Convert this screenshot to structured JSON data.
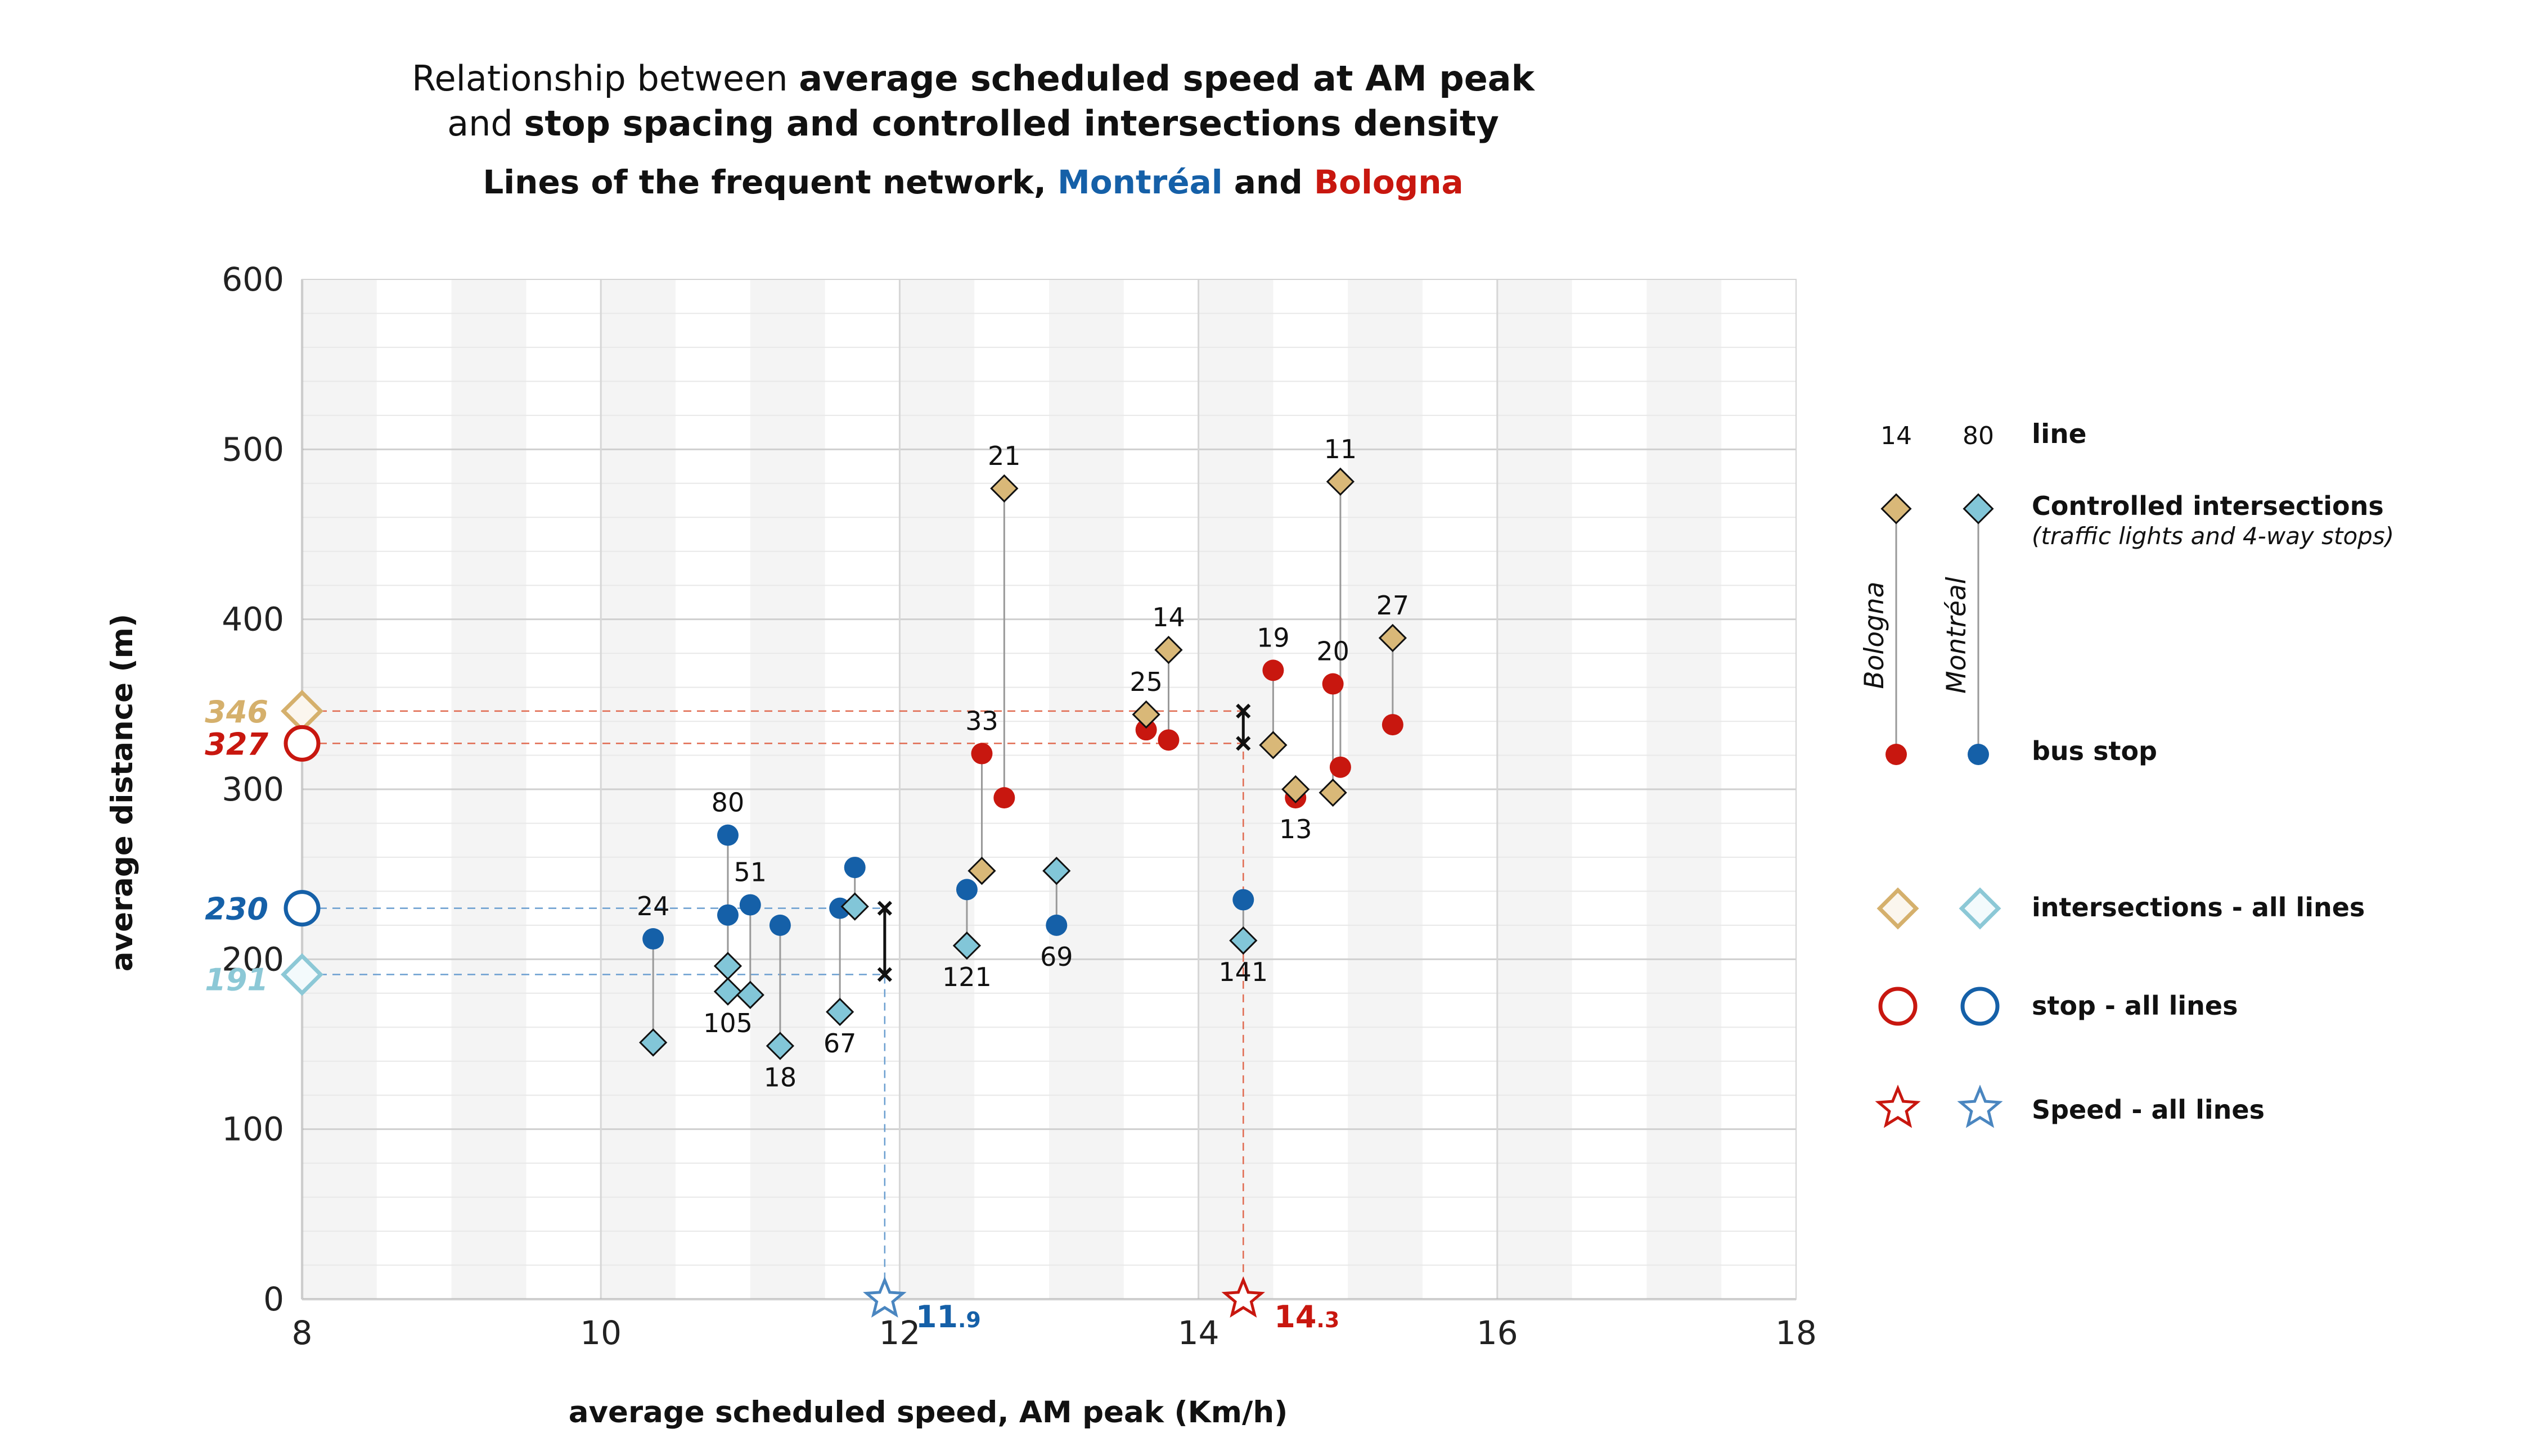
{
  "title": {
    "line1_pre": "Relationship between ",
    "line1_bold": "average scheduled speed at AM peak",
    "line2_pre": "and ",
    "line2_bold": "stop spacing and controlled intersections density",
    "subtitle_pre": "Lines of the frequent network, ",
    "subtitle_montreal": "Montréal",
    "subtitle_and": " and ",
    "subtitle_bologna": "Bologna"
  },
  "colors": {
    "bologna_stop": "#c8170f",
    "bologna_int": "#d9b878",
    "montreal_stop": "#1560a8",
    "montreal_int": "#82c6d8",
    "avg_bologna_int": "#d5b06c",
    "avg_montreal_int": "#8cc8d6"
  },
  "chart_data": {
    "type": "scatter",
    "xlabel": "average scheduled speed, AM peak (Km/h)",
    "ylabel": "average distance (m)",
    "xlim": [
      8,
      18
    ],
    "ylim": [
      0,
      600
    ],
    "xticks": [
      "8",
      "10",
      "12",
      "14",
      "16",
      "18"
    ],
    "yticks": [
      "0",
      "100",
      "200",
      "300",
      "400",
      "500",
      "600"
    ],
    "grid": true,
    "series": [
      {
        "name": "Montréal",
        "lines": [
          {
            "line": "24",
            "speed": 10.35,
            "stop": 212,
            "int": 151,
            "label": "24",
            "label_pos": "top"
          },
          {
            "line": "80",
            "speed": 10.85,
            "stop": 273,
            "int": 196,
            "label": "80",
            "label_pos": "top"
          },
          {
            "line": "105",
            "speed": 10.85,
            "stop": 226,
            "int": 181,
            "label": "105",
            "label_pos": "bottom"
          },
          {
            "line": "51",
            "speed": 11.0,
            "stop": 232,
            "int": 179,
            "label": "51",
            "label_pos": "top"
          },
          {
            "line": "18",
            "speed": 11.2,
            "stop": 220,
            "int": 149,
            "label": "18",
            "label_pos": "bottom"
          },
          {
            "line": "67",
            "speed": 11.6,
            "stop": 230,
            "int": 169,
            "label": "67",
            "label_pos": "bottom"
          },
          {
            "line": "",
            "speed": 11.7,
            "stop": 254,
            "int": 231,
            "label": "",
            "label_pos": ""
          },
          {
            "line": "121",
            "speed": 12.45,
            "stop": 241,
            "int": 208,
            "label": "121",
            "label_pos": "bottom"
          },
          {
            "line": "69",
            "speed": 13.05,
            "stop": 220,
            "int": 252,
            "label": "69",
            "label_pos": "bottom"
          },
          {
            "line": "141",
            "speed": 14.3,
            "stop": 235,
            "int": 211,
            "label": "141",
            "label_pos": "bottom"
          }
        ]
      },
      {
        "name": "Bologna",
        "lines": [
          {
            "line": "33",
            "speed": 12.55,
            "stop": 321,
            "int": 252,
            "label": "33",
            "label_pos": "top"
          },
          {
            "line": "21",
            "speed": 12.7,
            "stop": 295,
            "int": 477,
            "label": "21",
            "label_pos": "top"
          },
          {
            "line": "25",
            "speed": 13.65,
            "stop": 335,
            "int": 344,
            "label": "25",
            "label_pos": "top"
          },
          {
            "line": "14",
            "speed": 13.8,
            "stop": 329,
            "int": 382,
            "label": "14",
            "label_pos": "top"
          },
          {
            "line": "19",
            "speed": 14.5,
            "stop": 370,
            "int": 326,
            "label": "19",
            "label_pos": "top"
          },
          {
            "line": "13",
            "speed": 14.65,
            "stop": 295,
            "int": 300,
            "label": "13",
            "label_pos": "bottom"
          },
          {
            "line": "20",
            "speed": 14.9,
            "stop": 362,
            "int": 298,
            "label": "20",
            "label_pos": "top"
          },
          {
            "line": "11",
            "speed": 14.95,
            "stop": 313,
            "int": 481,
            "label": "11",
            "label_pos": "top"
          },
          {
            "line": "27",
            "speed": 15.3,
            "stop": 338,
            "int": 389,
            "label": "27",
            "label_pos": "top"
          }
        ]
      }
    ],
    "averages": {
      "bologna": {
        "speed": 14.3,
        "stop": 327,
        "int": 346,
        "speed_label_main": "14",
        "speed_label_dec": ".3",
        "stop_label": "327",
        "int_label": "346"
      },
      "montreal": {
        "speed": 11.9,
        "stop": 230,
        "int": 191,
        "speed_label_main": "11",
        "speed_label_dec": ".9",
        "stop_label": "230",
        "int_label": "191"
      }
    }
  },
  "legend": {
    "line_bologna": "14",
    "line_montreal": "80",
    "line_label": "line",
    "controlled_title": "Controlled intersections",
    "controlled_sub": "(traffic lights and 4-way stops)",
    "bologna_vertical": "Bologna",
    "montreal_vertical": "Montréal",
    "bus_stop": "bus stop",
    "intersections_all": "intersections - all lines",
    "stop_all": "stop - all lines",
    "speed_all": "Speed - all lines"
  }
}
